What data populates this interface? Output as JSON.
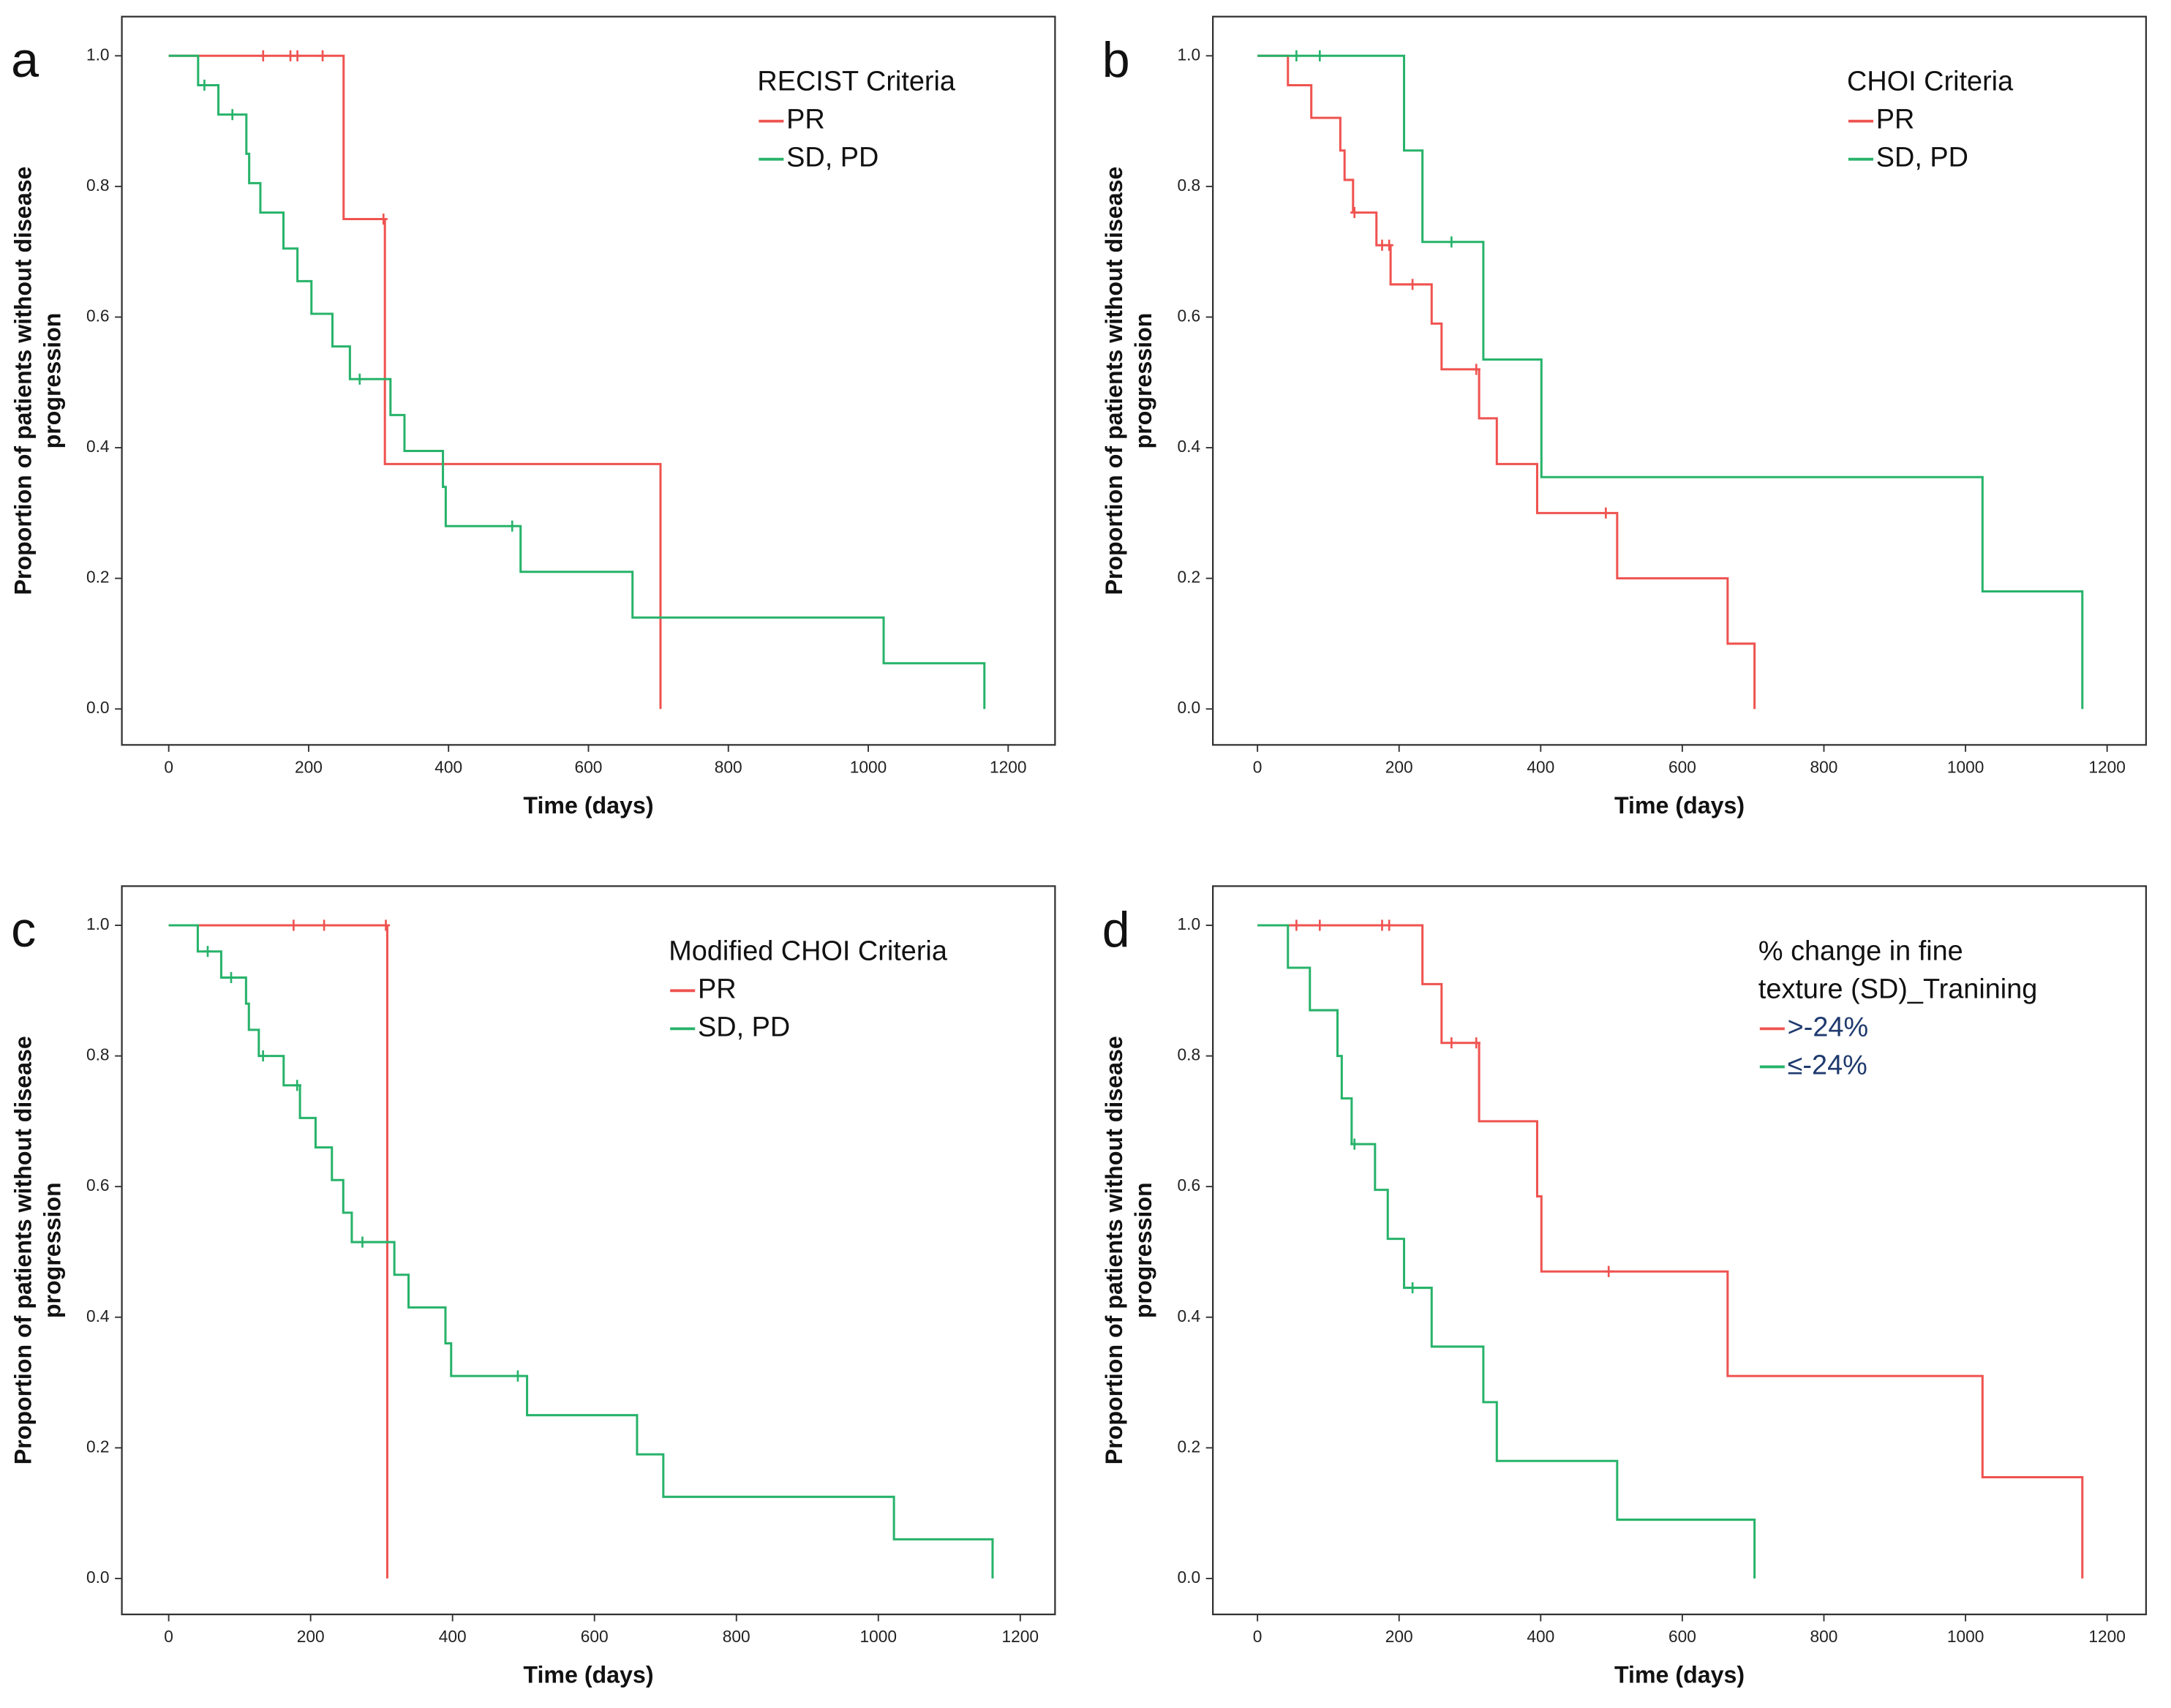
{
  "chart_data": [
    {
      "type": "step",
      "panel_label": "a",
      "legend_title": [
        "RECIST Criteria"
      ],
      "xlabel": "Time (days)",
      "ylabel": [
        "Proportion of patients without disease",
        "progression"
      ],
      "xlim": [
        -67,
        1267
      ],
      "ylim": [
        -0.055,
        1.06
      ],
      "xticks": [
        0,
        200,
        400,
        600,
        800,
        1000,
        1200
      ],
      "yticks": [
        {
          "value": 0,
          "label": "0.0"
        },
        0.2,
        0.4,
        0.6,
        0.8,
        {
          "value": 1,
          "label": "1.0"
        }
      ],
      "legend_text_color": "#111111",
      "series": [
        {
          "name": "PR",
          "color": "#ef5350",
          "x": [
            0,
            250,
            309,
            703
          ],
          "values": [
            1.0,
            0.75,
            0.375,
            0.0
          ],
          "censor_x": [
            135,
            174,
            184,
            220,
            307
          ],
          "censor_values": [
            1.0,
            1.0,
            1.0,
            1.0,
            0.75
          ]
        },
        {
          "name": "SD, PD",
          "color": "#27b36a",
          "x": [
            0,
            42,
            71,
            111,
            115,
            131,
            164,
            184,
            204,
            234,
            259,
            317,
            337,
            392,
            396,
            503,
            663,
            1022,
            1166
          ],
          "values": [
            1.0,
            0.955,
            0.91,
            0.85,
            0.805,
            0.76,
            0.705,
            0.655,
            0.605,
            0.555,
            0.505,
            0.45,
            0.395,
            0.34,
            0.28,
            0.21,
            0.14,
            0.07,
            0.0
          ],
          "censor_x": [
            51,
            91,
            273,
            491
          ],
          "censor_values": [
            0.955,
            0.91,
            0.505,
            0.28
          ]
        }
      ]
    },
    {
      "type": "step",
      "panel_label": "b",
      "legend_title": [
        "CHOI Criteria"
      ],
      "xlabel": "Time (days)",
      "ylabel": [
        "Proportion of patients without disease",
        "progression"
      ],
      "xlim": [
        -63,
        1255
      ],
      "ylim": [
        -0.055,
        1.06
      ],
      "xticks": [
        0,
        200,
        400,
        600,
        800,
        1000,
        1200
      ],
      "yticks": [
        {
          "value": 0,
          "label": "0.0"
        },
        0.2,
        0.4,
        0.6,
        0.8,
        {
          "value": 1,
          "label": "1.0"
        }
      ],
      "legend_text_color": "#111111",
      "series": [
        {
          "name": "PR",
          "color": "#ef5350",
          "x": [
            0,
            43,
            76,
            117,
            123,
            135,
            168,
            188,
            246,
            260,
            313,
            338,
            395,
            508,
            664,
            702
          ],
          "values": [
            1.0,
            0.955,
            0.905,
            0.855,
            0.81,
            0.76,
            0.71,
            0.65,
            0.59,
            0.52,
            0.445,
            0.375,
            0.3,
            0.2,
            0.1,
            0.0
          ],
          "censor_x": [
            137,
            176,
            186,
            219,
            309,
            492
          ],
          "censor_values": [
            0.76,
            0.71,
            0.71,
            0.65,
            0.52,
            0.3
          ]
        },
        {
          "name": "SD, PD",
          "color": "#27b36a",
          "x": [
            0,
            207,
            233,
            319,
            401,
            1024,
            1165
          ],
          "values": [
            1.0,
            0.855,
            0.715,
            0.535,
            0.355,
            0.18,
            0.0
          ],
          "censor_x": [
            55,
            88,
            274
          ],
          "censor_values": [
            1.0,
            1.0,
            0.715
          ]
        }
      ]
    },
    {
      "type": "step",
      "panel_label": "c",
      "legend_title": [
        "Modified CHOI Criteria"
      ],
      "xlabel": "Time (days)",
      "ylabel": [
        "Proportion of patients without disease",
        "progression"
      ],
      "xlim": [
        -66,
        1249
      ],
      "ylim": [
        -0.055,
        1.06
      ],
      "xticks": [
        0,
        200,
        400,
        600,
        800,
        1000,
        1200
      ],
      "yticks": [
        {
          "value": 0,
          "label": "0.0"
        },
        0.2,
        0.4,
        0.6,
        0.8,
        {
          "value": 1,
          "label": "1.0"
        }
      ],
      "legend_text_color": "#111111",
      "series": [
        {
          "name": "PR",
          "color": "#ef5350",
          "x": [
            0,
            308
          ],
          "values": [
            1.0,
            0.0
          ],
          "censor_x": [
            176,
            219,
            306
          ],
          "censor_values": [
            1.0,
            1.0,
            1.0
          ]
        },
        {
          "name": "SD, PD",
          "color": "#27b36a",
          "x": [
            0,
            41,
            74,
            109,
            113,
            127,
            162,
            185,
            207,
            230,
            246,
            258,
            318,
            338,
            390,
            398,
            505,
            660,
            697,
            1022,
            1161
          ],
          "values": [
            1.0,
            0.96,
            0.92,
            0.88,
            0.84,
            0.8,
            0.755,
            0.705,
            0.66,
            0.61,
            0.56,
            0.515,
            0.465,
            0.415,
            0.36,
            0.31,
            0.25,
            0.19,
            0.125,
            0.06,
            0.0
          ],
          "censor_x": [
            55,
            88,
            133,
            181,
            273,
            492
          ],
          "censor_values": [
            0.96,
            0.92,
            0.8,
            0.755,
            0.515,
            0.31
          ]
        }
      ]
    },
    {
      "type": "step",
      "panel_label": "d",
      "legend_title": [
        "% change in fine",
        "texture (SD)_Tranining"
      ],
      "xlabel": "Time (days)",
      "ylabel": [
        "Proportion of patients without disease",
        "progression"
      ],
      "xlim": [
        -63,
        1255
      ],
      "ylim": [
        -0.055,
        1.06
      ],
      "xticks": [
        0,
        200,
        400,
        600,
        800,
        1000,
        1200
      ],
      "yticks": [
        {
          "value": 0,
          "label": "0.0"
        },
        0.2,
        0.4,
        0.6,
        0.8,
        {
          "value": 1,
          "label": "1.0"
        }
      ],
      "legend_text_color": "#1f3a6e",
      "series": [
        {
          "name": ">-24%",
          "color": "#ef5350",
          "x": [
            0,
            233,
            260,
            313,
            395,
            401,
            664,
            1024,
            1165
          ],
          "values": [
            1.0,
            0.91,
            0.82,
            0.7,
            0.585,
            0.47,
            0.31,
            0.155,
            0.0
          ],
          "censor_x": [
            55,
            88,
            176,
            186,
            274,
            309,
            496
          ],
          "censor_values": [
            1.0,
            1.0,
            1.0,
            1.0,
            0.82,
            0.82,
            0.47
          ]
        },
        {
          "name": "≤-24%",
          "color": "#27b36a",
          "x": [
            0,
            43,
            74,
            113,
            119,
            133,
            166,
            184,
            207,
            246,
            319,
            338,
            508,
            702
          ],
          "values": [
            1.0,
            0.935,
            0.87,
            0.8,
            0.735,
            0.665,
            0.595,
            0.52,
            0.445,
            0.355,
            0.27,
            0.18,
            0.09,
            0.0
          ],
          "censor_x": [
            137,
            219
          ],
          "censor_values": [
            0.665,
            0.445
          ]
        }
      ]
    }
  ]
}
